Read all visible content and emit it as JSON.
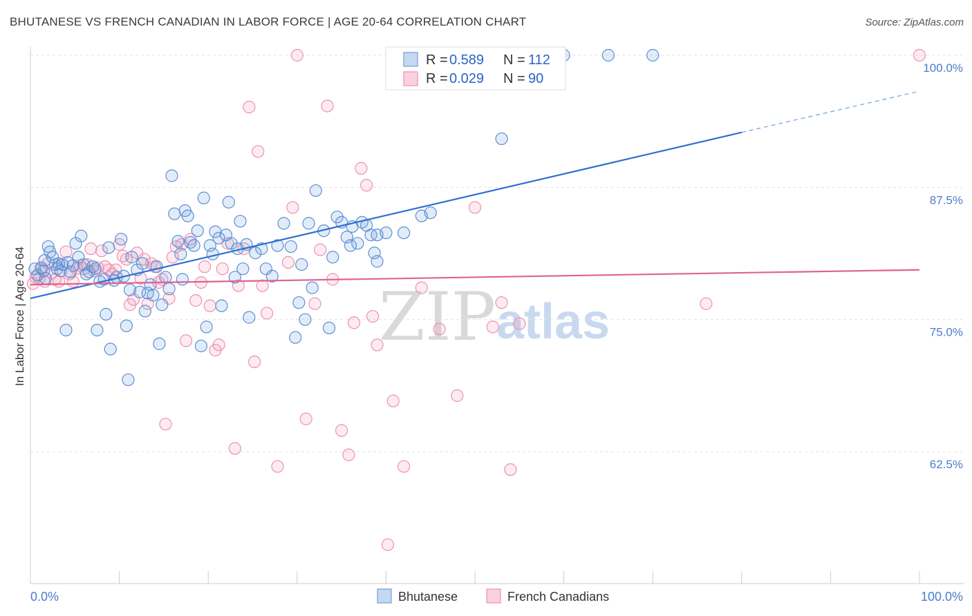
{
  "header": {
    "title": "BHUTANESE VS FRENCH CANADIAN IN LABOR FORCE | AGE 20-64 CORRELATION CHART",
    "source": "Source: ZipAtlas.com"
  },
  "watermark": {
    "zip": "ZIP",
    "atlas": "atlas"
  },
  "legend": {
    "rows": [
      {
        "r_label": "R = ",
        "r_value": "0.589",
        "n_label": "N = ",
        "n_value": "112",
        "color": "#6f9fde"
      },
      {
        "r_label": "R = ",
        "r_value": "0.029",
        "n_label": "N = ",
        "n_value": "90",
        "color": "#f08fb0"
      }
    ]
  },
  "bottom_legend": {
    "items": [
      {
        "label": "Bhutanese",
        "color": "#6f9fde"
      },
      {
        "label": "French Canadians",
        "color": "#f08fb0"
      }
    ]
  },
  "chart_data": {
    "type": "scatter",
    "title": "BHUTANESE VS FRENCH CANADIAN IN LABOR FORCE | AGE 20-64 CORRELATION CHART",
    "xlabel": "",
    "ylabel": "In Labor Force | Age 20-64",
    "xlim": [
      0,
      100
    ],
    "ylim": [
      51.5,
      101
    ],
    "x_tick_labels": [
      "0.0%",
      "100.0%"
    ],
    "y_ticks": [
      62.5,
      75.0,
      87.5,
      100.0
    ],
    "y_tick_labels": [
      "62.5%",
      "75.0%",
      "87.5%",
      "100.0%"
    ],
    "grid": true,
    "legend_position": "top-center",
    "series": [
      {
        "name": "Bhutanese",
        "color": "#6f9fde",
        "trend": {
          "x0": 0,
          "y0": 77.0,
          "x1": 80,
          "y1": 92.7,
          "dash_to_x": 100,
          "dash_to_y": 96.6
        },
        "points": [
          [
            0.5,
            79.8
          ],
          [
            0.8,
            79.2
          ],
          [
            1.2,
            79.9
          ],
          [
            1.5,
            79.6
          ],
          [
            1.6,
            80.6
          ],
          [
            1.7,
            78.9
          ],
          [
            2.0,
            81.9
          ],
          [
            2.2,
            81.4
          ],
          [
            2.5,
            80.9
          ],
          [
            2.8,
            80.2
          ],
          [
            3.0,
            79.8
          ],
          [
            3.2,
            80.3
          ],
          [
            3.4,
            79.6
          ],
          [
            3.6,
            80.2
          ],
          [
            4.0,
            74.0
          ],
          [
            4.2,
            80.4
          ],
          [
            4.5,
            79.5
          ],
          [
            4.8,
            80.1
          ],
          [
            5.1,
            82.2
          ],
          [
            5.4,
            80.9
          ],
          [
            5.7,
            82.9
          ],
          [
            6.0,
            80.2
          ],
          [
            6.3,
            79.3
          ],
          [
            6.6,
            79.5
          ],
          [
            7.0,
            80.0
          ],
          [
            7.3,
            79.8
          ],
          [
            7.5,
            74.0
          ],
          [
            7.8,
            78.6
          ],
          [
            8.3,
            78.8
          ],
          [
            8.5,
            75.5
          ],
          [
            8.8,
            81.8
          ],
          [
            9.0,
            72.2
          ],
          [
            9.4,
            78.7
          ],
          [
            9.7,
            79.0
          ],
          [
            10.2,
            82.6
          ],
          [
            10.5,
            79.1
          ],
          [
            10.8,
            74.4
          ],
          [
            11.0,
            69.3
          ],
          [
            11.2,
            77.8
          ],
          [
            11.4,
            80.9
          ],
          [
            12.0,
            79.7
          ],
          [
            12.3,
            77.6
          ],
          [
            12.6,
            80.3
          ],
          [
            12.9,
            75.8
          ],
          [
            13.2,
            77.5
          ],
          [
            13.5,
            78.3
          ],
          [
            13.8,
            77.3
          ],
          [
            14.2,
            80.0
          ],
          [
            14.5,
            72.7
          ],
          [
            14.8,
            76.4
          ],
          [
            15.2,
            79.0
          ],
          [
            15.6,
            77.9
          ],
          [
            15.9,
            88.6
          ],
          [
            16.2,
            85.0
          ],
          [
            16.6,
            82.4
          ],
          [
            16.9,
            81.2
          ],
          [
            17.1,
            78.8
          ],
          [
            17.4,
            85.3
          ],
          [
            17.7,
            84.8
          ],
          [
            18.0,
            82.3
          ],
          [
            18.4,
            82.0
          ],
          [
            18.8,
            83.4
          ],
          [
            19.2,
            72.5
          ],
          [
            19.5,
            86.5
          ],
          [
            19.8,
            74.3
          ],
          [
            20.2,
            82.0
          ],
          [
            20.5,
            81.2
          ],
          [
            20.8,
            83.3
          ],
          [
            21.2,
            82.7
          ],
          [
            21.5,
            76.3
          ],
          [
            22.0,
            83.0
          ],
          [
            22.3,
            86.1
          ],
          [
            22.6,
            82.2
          ],
          [
            23.0,
            79.0
          ],
          [
            23.3,
            81.7
          ],
          [
            23.6,
            84.3
          ],
          [
            23.9,
            79.8
          ],
          [
            24.3,
            82.1
          ],
          [
            24.6,
            75.2
          ],
          [
            25.3,
            81.3
          ],
          [
            26.0,
            81.7
          ],
          [
            26.5,
            79.8
          ],
          [
            27.2,
            79.1
          ],
          [
            27.8,
            82.0
          ],
          [
            28.5,
            84.1
          ],
          [
            29.3,
            81.9
          ],
          [
            29.8,
            73.3
          ],
          [
            30.2,
            76.6
          ],
          [
            30.5,
            80.2
          ],
          [
            30.9,
            75.0
          ],
          [
            31.3,
            84.1
          ],
          [
            31.7,
            78.0
          ],
          [
            32.1,
            87.2
          ],
          [
            33.0,
            83.4
          ],
          [
            33.6,
            74.2
          ],
          [
            34.0,
            80.9
          ],
          [
            34.5,
            84.7
          ],
          [
            35.0,
            84.2
          ],
          [
            35.6,
            82.8
          ],
          [
            36.2,
            83.8
          ],
          [
            36.8,
            82.2
          ],
          [
            37.3,
            84.2
          ],
          [
            37.8,
            83.9
          ],
          [
            38.3,
            83.0
          ],
          [
            38.7,
            81.3
          ],
          [
            39.0,
            80.5
          ],
          [
            40.0,
            83.2
          ],
          [
            42.0,
            83.2
          ],
          [
            44.0,
            84.8
          ],
          [
            45.0,
            85.1
          ],
          [
            53.0,
            92.1
          ],
          [
            60.0,
            100.0
          ],
          [
            65.0,
            100.0
          ],
          [
            70.0,
            100.0
          ],
          [
            39.0,
            83.0
          ],
          [
            36.0,
            82.0
          ]
        ]
      },
      {
        "name": "French Canadians",
        "color": "#f08fb0",
        "trend": {
          "x0": 0,
          "y0": 78.3,
          "x1": 100,
          "y1": 79.7
        },
        "points": [
          [
            0.3,
            78.4
          ],
          [
            0.6,
            79.0
          ],
          [
            1.0,
            78.9
          ],
          [
            1.3,
            79.8
          ],
          [
            1.6,
            78.6
          ],
          [
            2.0,
            80.3
          ],
          [
            2.4,
            79.4
          ],
          [
            2.8,
            78.8
          ],
          [
            3.2,
            78.6
          ],
          [
            3.6,
            80.2
          ],
          [
            4.0,
            81.4
          ],
          [
            4.4,
            79.3
          ],
          [
            4.8,
            78.6
          ],
          [
            5.2,
            79.8
          ],
          [
            5.6,
            80.1
          ],
          [
            6.0,
            79.8
          ],
          [
            6.4,
            80.2
          ],
          [
            6.8,
            81.7
          ],
          [
            7.2,
            79.6
          ],
          [
            7.6,
            79.9
          ],
          [
            8.0,
            81.5
          ],
          [
            8.4,
            80.0
          ],
          [
            8.8,
            79.7
          ],
          [
            9.2,
            79.3
          ],
          [
            9.6,
            79.7
          ],
          [
            10.0,
            82.1
          ],
          [
            10.4,
            81.0
          ],
          [
            10.8,
            80.7
          ],
          [
            11.2,
            76.4
          ],
          [
            11.6,
            76.9
          ],
          [
            12.0,
            81.3
          ],
          [
            12.4,
            78.9
          ],
          [
            12.8,
            80.7
          ],
          [
            13.2,
            76.5
          ],
          [
            13.6,
            80.3
          ],
          [
            14.0,
            80.0
          ],
          [
            14.4,
            78.5
          ],
          [
            14.8,
            78.8
          ],
          [
            15.2,
            65.1
          ],
          [
            15.6,
            77.0
          ],
          [
            16.0,
            80.9
          ],
          [
            16.4,
            81.9
          ],
          [
            17.0,
            82.1
          ],
          [
            17.5,
            73.0
          ],
          [
            18.0,
            82.6
          ],
          [
            18.6,
            76.8
          ],
          [
            19.2,
            78.5
          ],
          [
            19.6,
            80.0
          ],
          [
            20.2,
            76.3
          ],
          [
            20.8,
            72.1
          ],
          [
            21.2,
            72.6
          ],
          [
            21.6,
            79.8
          ],
          [
            22.2,
            82.2
          ],
          [
            23.0,
            62.8
          ],
          [
            23.4,
            78.2
          ],
          [
            24.0,
            81.7
          ],
          [
            24.6,
            95.1
          ],
          [
            25.2,
            71.0
          ],
          [
            25.6,
            90.9
          ],
          [
            26.1,
            78.2
          ],
          [
            26.6,
            75.6
          ],
          [
            27.8,
            61.1
          ],
          [
            29.0,
            80.4
          ],
          [
            29.5,
            85.6
          ],
          [
            30.0,
            100.0
          ],
          [
            31.0,
            65.6
          ],
          [
            32.0,
            76.5
          ],
          [
            32.6,
            81.6
          ],
          [
            33.4,
            95.2
          ],
          [
            34.0,
            78.8
          ],
          [
            35.0,
            64.5
          ],
          [
            35.8,
            62.2
          ],
          [
            36.4,
            74.7
          ],
          [
            37.2,
            89.3
          ],
          [
            37.8,
            87.7
          ],
          [
            38.5,
            75.3
          ],
          [
            39.0,
            72.6
          ],
          [
            40.2,
            53.7
          ],
          [
            40.8,
            67.3
          ],
          [
            42.0,
            61.1
          ],
          [
            44.0,
            78.0
          ],
          [
            46.0,
            74.1
          ],
          [
            48.0,
            67.8
          ],
          [
            50.0,
            85.6
          ],
          [
            52.0,
            74.3
          ],
          [
            53.0,
            76.6
          ],
          [
            54.0,
            60.8
          ],
          [
            55.0,
            74.6
          ],
          [
            76.0,
            76.5
          ],
          [
            100.0,
            100.0
          ]
        ]
      }
    ]
  }
}
